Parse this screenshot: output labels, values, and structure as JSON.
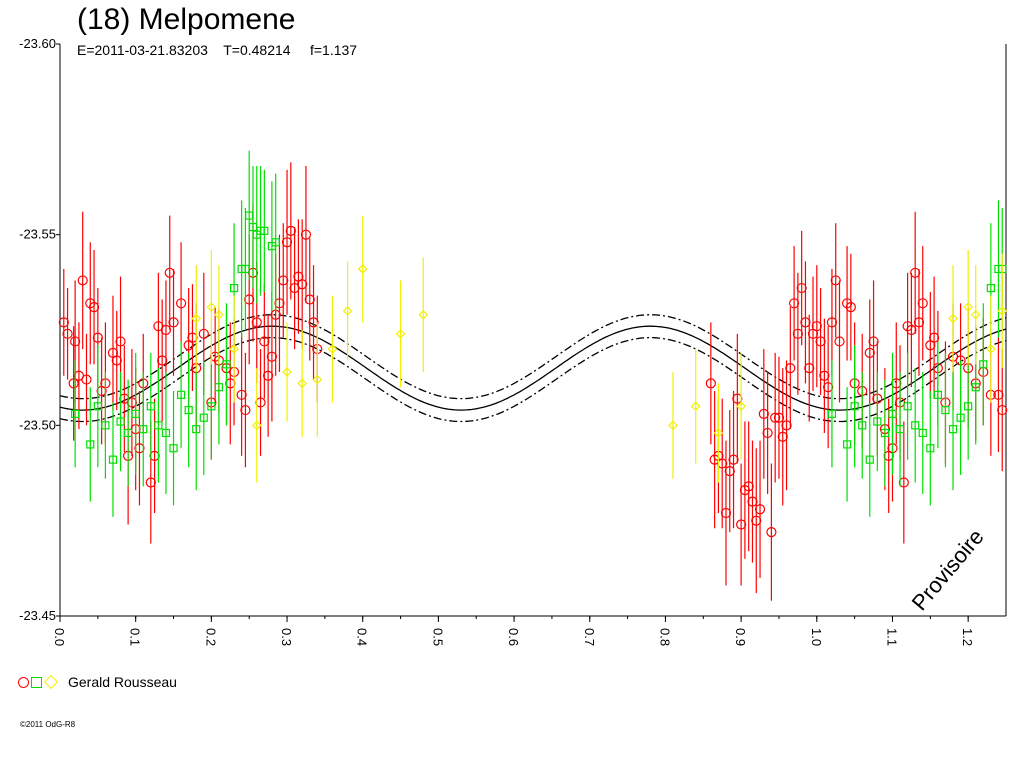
{
  "chart_data": {
    "type": "scatter",
    "title": "(18) Melpomene",
    "subtitle": "E=2011-03-21.83203    T=0.48214     f=1.137",
    "xlabel": "",
    "ylabel": "",
    "xlim": [
      0.0,
      1.25
    ],
    "ylim": [
      -23.45,
      -23.6
    ],
    "x_ticks": [
      "0.0",
      "0.1",
      "0.2",
      "0.3",
      "0.4",
      "0.5",
      "0.6",
      "0.7",
      "0.8",
      "0.9",
      "1.0",
      "1.1",
      "1.2"
    ],
    "y_ticks": [
      "-23.60",
      "-23.55",
      "-23.50",
      "-23.45"
    ],
    "grid": false,
    "watermark": "Provisoire",
    "legend": {
      "observer": "Gerald Rousseau",
      "placement": "bottom-left"
    },
    "fit": {
      "mean": -23.515,
      "amplitude": 0.011,
      "phase_peak": 0.28,
      "envelope": 0.003
    },
    "series": [
      {
        "marker": "circle",
        "color": "#ff0000",
        "points": [
          [
            0.005,
            -23.527,
            0.014
          ],
          [
            0.01,
            -23.524,
            0.012
          ],
          [
            0.018,
            -23.511,
            0.015
          ],
          [
            0.02,
            -23.522,
            0.016
          ],
          [
            0.025,
            -23.513,
            0.014
          ],
          [
            0.03,
            -23.538,
            0.018
          ],
          [
            0.035,
            -23.512,
            0.012
          ],
          [
            0.04,
            -23.532,
            0.016
          ],
          [
            0.045,
            -23.531,
            0.015
          ],
          [
            0.05,
            -23.523,
            0.013
          ],
          [
            0.055,
            -23.509,
            0.014
          ],
          [
            0.06,
            -23.511,
            0.016
          ],
          [
            0.07,
            -23.519,
            0.015
          ],
          [
            0.075,
            -23.517,
            0.013
          ],
          [
            0.08,
            -23.522,
            0.017
          ],
          [
            0.085,
            -23.507,
            0.014
          ],
          [
            0.09,
            -23.492,
            0.018
          ],
          [
            0.095,
            -23.506,
            0.014
          ],
          [
            0.1,
            -23.499,
            0.016
          ],
          [
            0.105,
            -23.494,
            0.015
          ],
          [
            0.11,
            -23.511,
            0.013
          ],
          [
            0.12,
            -23.485,
            0.016
          ],
          [
            0.125,
            -23.492,
            0.015
          ],
          [
            0.13,
            -23.526,
            0.014
          ],
          [
            0.135,
            -23.517,
            0.016
          ],
          [
            0.14,
            -23.525,
            0.013
          ],
          [
            0.145,
            -23.54,
            0.015
          ],
          [
            0.15,
            -23.527,
            0.014
          ],
          [
            0.16,
            -23.532,
            0.016
          ],
          [
            0.17,
            -23.521,
            0.015
          ],
          [
            0.175,
            -23.523,
            0.014
          ],
          [
            0.18,
            -23.515,
            0.017
          ],
          [
            0.19,
            -23.524,
            0.016
          ],
          [
            0.2,
            -23.506,
            0.015
          ],
          [
            0.205,
            -23.518,
            0.013
          ],
          [
            0.21,
            -23.517,
            0.014
          ],
          [
            0.22,
            -23.515,
            0.015
          ],
          [
            0.225,
            -23.511,
            0.016
          ],
          [
            0.23,
            -23.514,
            0.014
          ],
          [
            0.24,
            -23.508,
            0.016
          ],
          [
            0.245,
            -23.504,
            0.015
          ],
          [
            0.25,
            -23.533,
            0.017
          ],
          [
            0.255,
            -23.54,
            0.018
          ],
          [
            0.26,
            -23.527,
            0.016
          ],
          [
            0.265,
            -23.506,
            0.014
          ],
          [
            0.27,
            -23.522,
            0.015
          ],
          [
            0.275,
            -23.513,
            0.016
          ],
          [
            0.28,
            -23.518,
            0.017
          ],
          [
            0.285,
            -23.529,
            0.016
          ],
          [
            0.29,
            -23.532,
            0.018
          ],
          [
            0.295,
            -23.538,
            0.015
          ],
          [
            0.3,
            -23.548,
            0.019
          ],
          [
            0.305,
            -23.551,
            0.018
          ],
          [
            0.31,
            -23.536,
            0.016
          ],
          [
            0.315,
            -23.539,
            0.015
          ],
          [
            0.32,
            -23.537,
            0.017
          ],
          [
            0.325,
            -23.55,
            0.018
          ],
          [
            0.33,
            -23.533,
            0.016
          ],
          [
            0.335,
            -23.527,
            0.015
          ],
          [
            0.34,
            -23.52,
            0.014
          ],
          [
            0.86,
            -23.511,
            0.016
          ],
          [
            0.865,
            -23.491,
            0.018
          ],
          [
            0.87,
            -23.492,
            0.015
          ],
          [
            0.875,
            -23.49,
            0.017
          ],
          [
            0.88,
            -23.477,
            0.019
          ],
          [
            0.885,
            -23.488,
            0.016
          ],
          [
            0.89,
            -23.491,
            0.018
          ],
          [
            0.895,
            -23.507,
            0.017
          ],
          [
            0.9,
            -23.474,
            0.016
          ],
          [
            0.905,
            -23.483,
            0.018
          ],
          [
            0.91,
            -23.484,
            0.017
          ],
          [
            0.915,
            -23.48,
            0.016
          ],
          [
            0.92,
            -23.475,
            0.019
          ],
          [
            0.925,
            -23.478,
            0.018
          ],
          [
            0.93,
            -23.503,
            0.017
          ],
          [
            0.935,
            -23.498,
            0.016
          ],
          [
            0.94,
            -23.472,
            0.018
          ],
          [
            0.945,
            -23.502,
            0.017
          ],
          [
            0.95,
            -23.502,
            0.016
          ],
          [
            0.955,
            -23.497,
            0.018
          ],
          [
            0.96,
            -23.5,
            0.017
          ],
          [
            0.965,
            -23.515,
            0.016
          ],
          [
            0.97,
            -23.532,
            0.015
          ],
          [
            0.975,
            -23.524,
            0.016
          ],
          [
            0.98,
            -23.536,
            0.015
          ],
          [
            0.985,
            -23.527,
            0.016
          ],
          [
            0.99,
            -23.515,
            0.014
          ],
          [
            0.995,
            -23.524,
            0.015
          ],
          [
            1.0,
            -23.526,
            0.016
          ],
          [
            1.005,
            -23.522,
            0.014
          ],
          [
            1.01,
            -23.513,
            0.015
          ],
          [
            1.015,
            -23.51,
            0.016
          ],
          [
            1.02,
            -23.527,
            0.014
          ],
          [
            1.025,
            -23.538,
            0.015
          ],
          [
            1.03,
            -23.522,
            0.016
          ],
          [
            1.04,
            -23.532,
            0.015
          ],
          [
            1.045,
            -23.531,
            0.014
          ],
          [
            1.05,
            -23.511,
            0.016
          ],
          [
            1.06,
            -23.509,
            0.015
          ],
          [
            1.07,
            -23.519,
            0.014
          ],
          [
            1.075,
            -23.522,
            0.016
          ],
          [
            1.08,
            -23.507,
            0.015
          ],
          [
            1.09,
            -23.499,
            0.016
          ],
          [
            1.095,
            -23.492,
            0.015
          ],
          [
            1.1,
            -23.494,
            0.014
          ],
          [
            1.105,
            -23.511,
            0.016
          ],
          [
            1.11,
            -23.506,
            0.015
          ],
          [
            1.115,
            -23.485,
            0.016
          ],
          [
            1.12,
            -23.526,
            0.014
          ],
          [
            1.125,
            -23.525,
            0.015
          ],
          [
            1.13,
            -23.54,
            0.016
          ],
          [
            1.135,
            -23.527,
            0.014
          ],
          [
            1.14,
            -23.532,
            0.015
          ],
          [
            1.15,
            -23.521,
            0.014
          ],
          [
            1.155,
            -23.523,
            0.016
          ],
          [
            1.16,
            -23.515,
            0.015
          ],
          [
            1.17,
            -23.506,
            0.016
          ],
          [
            1.18,
            -23.518,
            0.014
          ],
          [
            1.19,
            -23.517,
            0.015
          ],
          [
            1.2,
            -23.515,
            0.016
          ],
          [
            1.21,
            -23.511,
            0.015
          ],
          [
            1.22,
            -23.514,
            0.014
          ],
          [
            1.23,
            -23.508,
            0.016
          ],
          [
            1.24,
            -23.508,
            0.015
          ],
          [
            1.245,
            -23.504,
            0.016
          ]
        ]
      },
      {
        "marker": "square",
        "color": "#00e000",
        "points": [
          [
            0.02,
            -23.503,
            0.014
          ],
          [
            0.04,
            -23.495,
            0.015
          ],
          [
            0.05,
            -23.505,
            0.016
          ],
          [
            0.06,
            -23.5,
            0.014
          ],
          [
            0.07,
            -23.491,
            0.015
          ],
          [
            0.08,
            -23.501,
            0.013
          ],
          [
            0.09,
            -23.498,
            0.014
          ],
          [
            0.1,
            -23.503,
            0.016
          ],
          [
            0.11,
            -23.499,
            0.015
          ],
          [
            0.12,
            -23.505,
            0.014
          ],
          [
            0.13,
            -23.5,
            0.015
          ],
          [
            0.14,
            -23.498,
            0.016
          ],
          [
            0.15,
            -23.494,
            0.015
          ],
          [
            0.16,
            -23.508,
            0.014
          ],
          [
            0.17,
            -23.504,
            0.015
          ],
          [
            0.18,
            -23.499,
            0.016
          ],
          [
            0.19,
            -23.502,
            0.015
          ],
          [
            0.2,
            -23.505,
            0.014
          ],
          [
            0.21,
            -23.51,
            0.015
          ],
          [
            0.22,
            -23.516,
            0.016
          ],
          [
            0.23,
            -23.536,
            0.017
          ],
          [
            0.24,
            -23.541,
            0.018
          ],
          [
            0.245,
            -23.541,
            0.016
          ],
          [
            0.25,
            -23.555,
            0.017
          ],
          [
            0.255,
            -23.552,
            0.016
          ],
          [
            0.26,
            -23.55,
            0.018
          ],
          [
            0.265,
            -23.551,
            0.017
          ],
          [
            0.27,
            -23.551,
            0.016
          ],
          [
            0.28,
            -23.547,
            0.017
          ],
          [
            0.285,
            -23.548,
            0.018
          ],
          [
            1.02,
            -23.503,
            0.014
          ],
          [
            1.04,
            -23.495,
            0.015
          ],
          [
            1.05,
            -23.505,
            0.016
          ],
          [
            1.06,
            -23.5,
            0.014
          ],
          [
            1.07,
            -23.491,
            0.015
          ],
          [
            1.08,
            -23.501,
            0.013
          ],
          [
            1.09,
            -23.498,
            0.014
          ],
          [
            1.1,
            -23.503,
            0.016
          ],
          [
            1.11,
            -23.499,
            0.015
          ],
          [
            1.12,
            -23.505,
            0.014
          ],
          [
            1.13,
            -23.5,
            0.015
          ],
          [
            1.14,
            -23.498,
            0.016
          ],
          [
            1.15,
            -23.494,
            0.015
          ],
          [
            1.16,
            -23.508,
            0.014
          ],
          [
            1.17,
            -23.504,
            0.015
          ],
          [
            1.18,
            -23.499,
            0.016
          ],
          [
            1.19,
            -23.502,
            0.015
          ],
          [
            1.2,
            -23.505,
            0.014
          ],
          [
            1.21,
            -23.51,
            0.015
          ],
          [
            1.22,
            -23.516,
            0.016
          ],
          [
            1.23,
            -23.536,
            0.017
          ],
          [
            1.24,
            -23.541,
            0.018
          ],
          [
            1.245,
            -23.541,
            0.016
          ]
        ]
      },
      {
        "marker": "diamond",
        "color": "#f0f000",
        "points": [
          [
            0.18,
            -23.528,
            0.014
          ],
          [
            0.2,
            -23.531,
            0.015
          ],
          [
            0.21,
            -23.529,
            0.013
          ],
          [
            0.23,
            -23.52,
            0.014
          ],
          [
            0.26,
            -23.5,
            0.015
          ],
          [
            0.3,
            -23.514,
            0.013
          ],
          [
            0.32,
            -23.511,
            0.014
          ],
          [
            0.34,
            -23.512,
            0.015
          ],
          [
            0.36,
            -23.52,
            0.014
          ],
          [
            0.38,
            -23.53,
            0.013
          ],
          [
            0.4,
            -23.541,
            0.014
          ],
          [
            0.45,
            -23.524,
            0.014
          ],
          [
            0.48,
            -23.529,
            0.015
          ],
          [
            0.81,
            -23.5,
            0.014
          ],
          [
            0.84,
            -23.505,
            0.015
          ],
          [
            0.87,
            -23.498,
            0.013
          ],
          [
            0.9,
            -23.505,
            0.014
          ],
          [
            1.18,
            -23.528,
            0.014
          ],
          [
            1.2,
            -23.531,
            0.015
          ],
          [
            1.21,
            -23.529,
            0.013
          ],
          [
            1.23,
            -23.52,
            0.014
          ],
          [
            1.245,
            -23.53,
            0.015
          ]
        ]
      }
    ]
  }
}
